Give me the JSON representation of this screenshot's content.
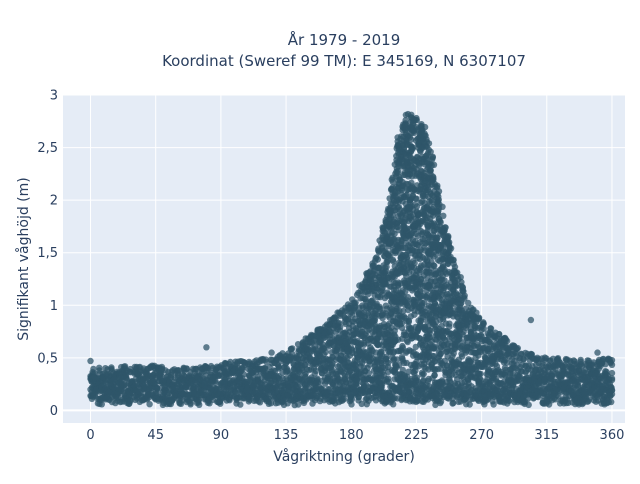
{
  "chart_data": {
    "type": "scatter",
    "title_line1": "År 1979 - 2019",
    "title_line2": "Koordinat (Sweref 99 TM): E 345169, N 6307107",
    "xlabel": "Vågriktning (grader)",
    "ylabel": "Signifikant våghöjd (m)",
    "xlim": [
      -19,
      369
    ],
    "ylim": [
      -0.12,
      3.0
    ],
    "x_ticks": [
      0,
      45,
      90,
      135,
      180,
      225,
      270,
      315,
      360
    ],
    "x_tick_labels": [
      "0",
      "45",
      "90",
      "135",
      "180",
      "225",
      "270",
      "315",
      "360"
    ],
    "y_ticks": [
      0,
      0.5,
      1,
      1.5,
      2,
      2.5,
      3
    ],
    "y_tick_labels": [
      "0",
      "0,5",
      "1",
      "1,5",
      "2",
      "2,5",
      "3"
    ],
    "grid": true,
    "marker_color": "#2f5569",
    "plot_bg": "#e5ecf6",
    "upper_envelope": [
      {
        "x": 0,
        "y": 0.4
      },
      {
        "x": 20,
        "y": 0.42
      },
      {
        "x": 45,
        "y": 0.43
      },
      {
        "x": 60,
        "y": 0.4
      },
      {
        "x": 90,
        "y": 0.45
      },
      {
        "x": 110,
        "y": 0.48
      },
      {
        "x": 130,
        "y": 0.52
      },
      {
        "x": 150,
        "y": 0.7
      },
      {
        "x": 165,
        "y": 0.85
      },
      {
        "x": 180,
        "y": 1.05
      },
      {
        "x": 195,
        "y": 1.4
      },
      {
        "x": 205,
        "y": 1.9
      },
      {
        "x": 212,
        "y": 2.6
      },
      {
        "x": 218,
        "y": 2.85
      },
      {
        "x": 225,
        "y": 2.8
      },
      {
        "x": 232,
        "y": 2.7
      },
      {
        "x": 238,
        "y": 2.3
      },
      {
        "x": 245,
        "y": 1.8
      },
      {
        "x": 252,
        "y": 1.4
      },
      {
        "x": 260,
        "y": 1.05
      },
      {
        "x": 270,
        "y": 0.85
      },
      {
        "x": 285,
        "y": 0.7
      },
      {
        "x": 300,
        "y": 0.55
      },
      {
        "x": 320,
        "y": 0.5
      },
      {
        "x": 340,
        "y": 0.48
      },
      {
        "x": 360,
        "y": 0.5
      }
    ],
    "outliers": [
      {
        "x": 0,
        "y": 0.47
      },
      {
        "x": 80,
        "y": 0.6
      },
      {
        "x": 125,
        "y": 0.55
      },
      {
        "x": 304,
        "y": 0.86
      },
      {
        "x": 350,
        "y": 0.55
      }
    ]
  }
}
